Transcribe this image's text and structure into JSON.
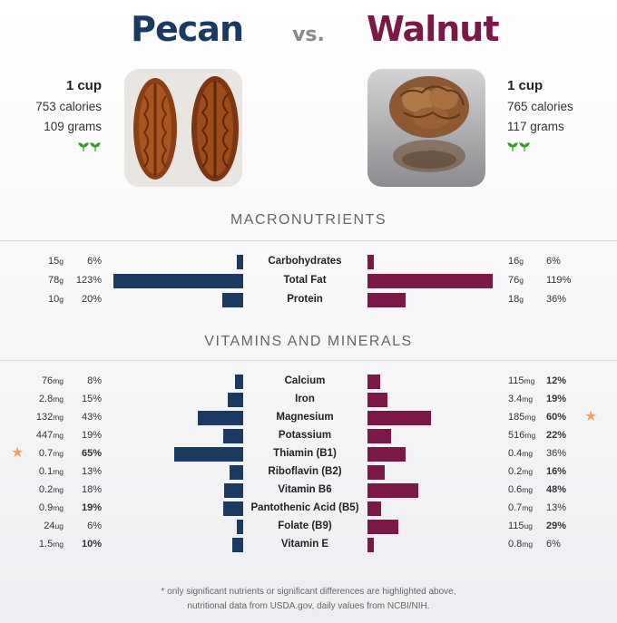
{
  "header": {
    "left_name": "Pecan",
    "vs": "vs.",
    "right_name": "Walnut"
  },
  "left_info": {
    "serving": "1 cup",
    "calories": "753 calories",
    "grams": "109 grams",
    "icon": "two-leaves-icon"
  },
  "right_info": {
    "serving": "1 cup",
    "calories": "765 calories",
    "grams": "117 grams",
    "icon": "two-leaves-icon"
  },
  "colors": {
    "left": "#1b3a61",
    "right": "#7c1848",
    "star": "#f2a067"
  },
  "sections": {
    "macro_title": "MACRONUTRIENTS",
    "vitamin_title": "VITAMINS AND MINERALS"
  },
  "chart_data": [
    {
      "type": "bar",
      "title": "MACRONUTRIENTS",
      "categories": [
        "Carbohydrates",
        "Total Fat",
        "Protein"
      ],
      "series": [
        {
          "name": "Pecan",
          "amounts": [
            "15",
            "78",
            "10"
          ],
          "units": [
            "g",
            "g",
            "g"
          ],
          "values": [
            6,
            123,
            20
          ]
        },
        {
          "name": "Walnut",
          "amounts": [
            "16",
            "76",
            "18"
          ],
          "units": [
            "g",
            "g",
            "g"
          ],
          "values": [
            6,
            119,
            36
          ]
        }
      ],
      "highlight": {
        "left": [
          false,
          false,
          false
        ],
        "right": [
          false,
          false,
          false
        ]
      },
      "stars": {
        "left": [
          false,
          false,
          false
        ],
        "right": [
          false,
          false,
          false
        ]
      }
    },
    {
      "type": "bar",
      "title": "VITAMINS AND MINERALS",
      "categories": [
        "Calcium",
        "Iron",
        "Magnesium",
        "Potassium",
        "Thiamin (B1)",
        "Riboflavin (B2)",
        "Vitamin B6",
        "Pantothenic Acid (B5)",
        "Folate (B9)",
        "Vitamin E"
      ],
      "series": [
        {
          "name": "Pecan",
          "amounts": [
            "76",
            "2.8",
            "132",
            "447",
            "0.7",
            "0.1",
            "0.2",
            "0.9",
            "24",
            "1.5"
          ],
          "units": [
            "mg",
            "mg",
            "mg",
            "mg",
            "mg",
            "mg",
            "mg",
            "mg",
            "ug",
            "mg"
          ],
          "values": [
            8,
            15,
            43,
            19,
            65,
            13,
            18,
            19,
            6,
            10
          ]
        },
        {
          "name": "Walnut",
          "amounts": [
            "115",
            "3.4",
            "185",
            "516",
            "0.4",
            "0.2",
            "0.6",
            "0.7",
            "115",
            "0.8"
          ],
          "units": [
            "mg",
            "mg",
            "mg",
            "mg",
            "mg",
            "mg",
            "mg",
            "mg",
            "ug",
            "mg"
          ],
          "values": [
            12,
            19,
            60,
            22,
            36,
            16,
            48,
            13,
            29,
            6
          ]
        }
      ],
      "highlight": {
        "left": [
          false,
          false,
          false,
          false,
          true,
          false,
          false,
          true,
          false,
          true
        ],
        "right": [
          true,
          true,
          true,
          true,
          false,
          true,
          true,
          false,
          true,
          false
        ]
      },
      "stars": {
        "left": [
          false,
          false,
          false,
          false,
          true,
          false,
          false,
          false,
          false,
          false
        ],
        "right": [
          false,
          false,
          true,
          false,
          false,
          false,
          false,
          false,
          false,
          false
        ]
      }
    }
  ],
  "footnote": {
    "line1": "* only significant nutrients or significant differences are highlighted above,",
    "line2": "nutritional data from USDA.gov, daily values from NCBI/NIH."
  }
}
